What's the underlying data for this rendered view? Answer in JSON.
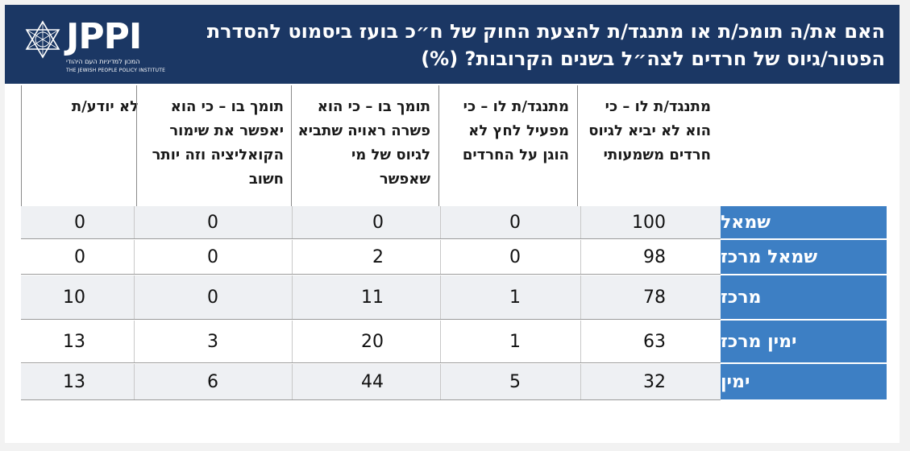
{
  "header": {
    "title": "האם את/ה תומכ/ת או מתנגד/ת להצעת החוק של ח״כ בועז ביסמוט להסדרת הפטור/גיוס של חרדים לצה״ל בשנים הקרובות? (%)",
    "logo_word": "JPPI",
    "logo_hebrew": "המכון למדיניות העם היהודי",
    "logo_english": "THE JEWISH PEOPLE POLICY INSTITUTE"
  },
  "colors": {
    "header_bg": "#1b3764",
    "row_label_bg": "#3d7fc4",
    "band": "#eef0f3"
  },
  "chart_data": {
    "type": "table",
    "title": "האם את/ה תומכ/ת או מתנגד/ת להצעת החוק של ח״כ בועז ביסמוט להסדרת הפטור/גיוס של חרדים לצה״ל בשנים הקרובות? (%)",
    "columns": [
      "מתנגד/ת לו – כי הוא לא יביא לגיוס חרדים משמעותי",
      "מתנגד/ת לו – כי מפעיל לחץ לא הוגן על החרדים",
      "תומך בו – כי הוא פשרה ראויה שתביא לגיוס של מי שאפשר",
      "תומך בו – כי הוא יאפשר את שימור הקואליציה וזה יותר חשוב",
      "לא יודע/ת"
    ],
    "rows": [
      {
        "label": "שמאל",
        "values": [
          100,
          0,
          0,
          0,
          0
        ]
      },
      {
        "label": "שמאל מרכז",
        "values": [
          98,
          0,
          2,
          0,
          0
        ]
      },
      {
        "label": "מרכז",
        "values": [
          78,
          1,
          11,
          0,
          10
        ]
      },
      {
        "label": "ימין מרכז",
        "values": [
          63,
          1,
          20,
          3,
          13
        ]
      },
      {
        "label": "ימין",
        "values": [
          32,
          5,
          44,
          6,
          13
        ]
      }
    ]
  }
}
